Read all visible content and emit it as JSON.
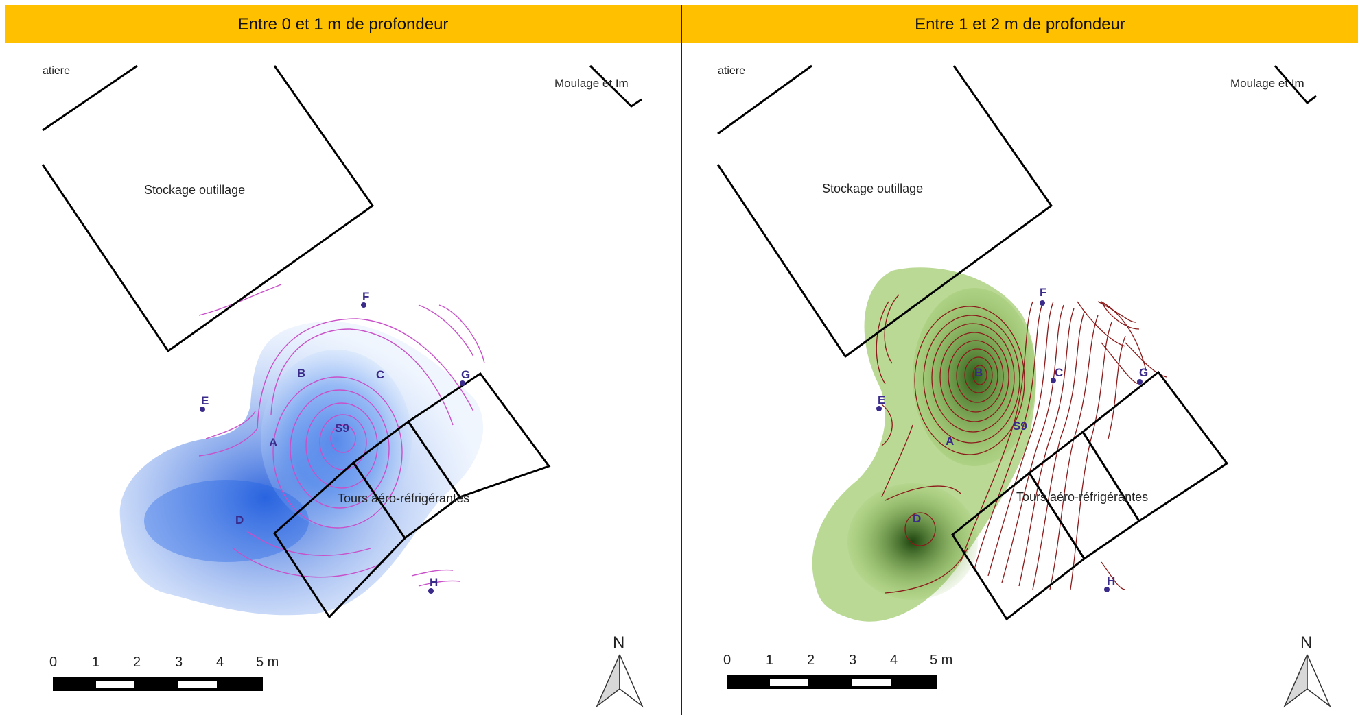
{
  "headers": {
    "left": "Entre 0 et 1 m de profondeur",
    "right": "Entre 1 et 2 m de profondeur"
  },
  "labels": {
    "matiere": "atiere",
    "moulage": "Moulage et Im",
    "stockage": "Stockage outillage",
    "tours": "Tours aéro-réfrigérantes"
  },
  "points": {
    "A": "A",
    "B": "B",
    "C": "C",
    "D": "D",
    "E": "E",
    "F": "F",
    "G": "G",
    "H": "H",
    "S9": "S9"
  },
  "scale": {
    "ticks": [
      "0",
      "1",
      "2",
      "3",
      "4",
      "5 m"
    ]
  },
  "north": "N",
  "colors": {
    "header": "#FFC000",
    "left_fill": "#1a5fe6",
    "left_contour": "#c850c8",
    "right_fill": "#2f6e14",
    "right_contour": "#8b1a1a",
    "point": "#3a2a8a"
  },
  "icons": [
    "north-arrow-icon",
    "sampling-point-icon"
  ]
}
